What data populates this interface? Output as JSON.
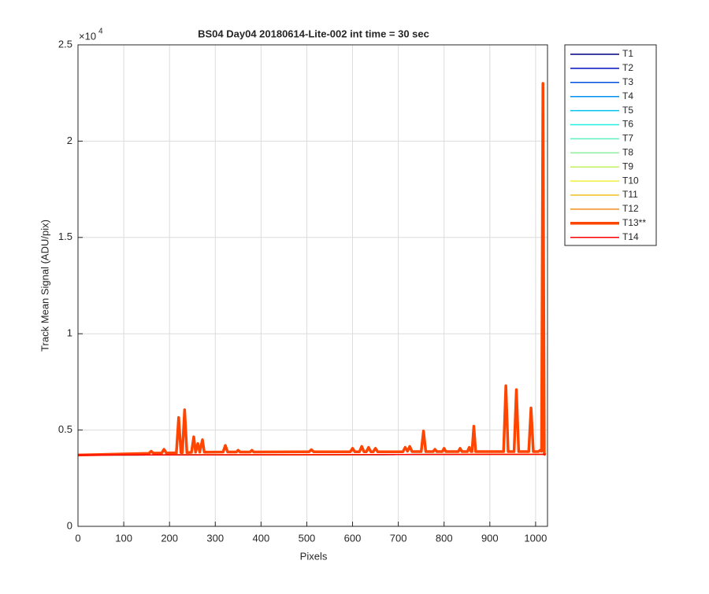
{
  "chart_data": {
    "type": "line",
    "title": "BS04 Day04 20180614-Lite-002 int time = 30 sec",
    "x_label": "Pixels",
    "y_label": "Track Mean Signal (ADU/pix)",
    "y_multiplier": {
      "base": "×10",
      "exponent": "4"
    },
    "xlim": [
      0,
      1026
    ],
    "ylim": [
      0,
      25000
    ],
    "xticks": [
      0,
      100,
      200,
      300,
      400,
      500,
      600,
      700,
      800,
      900,
      1000
    ],
    "yticks": [
      {
        "value": 0,
        "label": "0"
      },
      {
        "value": 5000,
        "label": "0.5"
      },
      {
        "value": 10000,
        "label": "1"
      },
      {
        "value": 15000,
        "label": "1.5"
      },
      {
        "value": 20000,
        "label": "2"
      },
      {
        "value": 25000,
        "label": "2.5"
      }
    ],
    "grid": true,
    "legend_position": "outside-right",
    "series": [
      {
        "name": "T1",
        "color": "#000080",
        "linewidth": 1.5,
        "x": [
          0,
          1022
        ],
        "values": [
          3700,
          3740
        ]
      },
      {
        "name": "T2",
        "color": "#0010c0",
        "linewidth": 1.5,
        "x": [
          0,
          1022
        ],
        "values": [
          3700,
          3740
        ]
      },
      {
        "name": "T3",
        "color": "#0050e0",
        "linewidth": 1.5,
        "x": [
          0,
          1022
        ],
        "values": [
          3700,
          3740
        ]
      },
      {
        "name": "T4",
        "color": "#0090f0",
        "linewidth": 1.5,
        "x": [
          0,
          1022
        ],
        "values": [
          3700,
          3740
        ]
      },
      {
        "name": "T5",
        "color": "#00c0f0",
        "linewidth": 1.5,
        "x": [
          0,
          1022
        ],
        "values": [
          3700,
          3740
        ]
      },
      {
        "name": "T6",
        "color": "#20f0e0",
        "linewidth": 1.5,
        "x": [
          0,
          1022
        ],
        "values": [
          3700,
          3740
        ]
      },
      {
        "name": "T7",
        "color": "#60f0c0",
        "linewidth": 1.5,
        "x": [
          0,
          1022
        ],
        "values": [
          3700,
          3740
        ]
      },
      {
        "name": "T8",
        "color": "#90f0a0",
        "linewidth": 1.5,
        "x": [
          0,
          1022
        ],
        "values": [
          3700,
          3740
        ]
      },
      {
        "name": "T9",
        "color": "#c0f060",
        "linewidth": 1.5,
        "x": [
          0,
          1022
        ],
        "values": [
          3700,
          3740
        ]
      },
      {
        "name": "T10",
        "color": "#f0f040",
        "linewidth": 1.5,
        "x": [
          0,
          1022
        ],
        "values": [
          3700,
          3740
        ]
      },
      {
        "name": "T11",
        "color": "#f0c020",
        "linewidth": 1.5,
        "x": [
          0,
          1022
        ],
        "values": [
          3700,
          3740
        ]
      },
      {
        "name": "T12",
        "color": "#f09020",
        "linewidth": 1.5,
        "x": [
          0,
          1022
        ],
        "values": [
          3700,
          3740
        ]
      },
      {
        "name": "T13**",
        "color": "#ff4500",
        "linewidth": 3.5,
        "x": [
          0,
          100,
          155,
          160,
          165,
          183,
          188,
          193,
          215,
          220,
          225,
          228,
          233,
          238,
          248,
          253,
          257,
          262,
          266,
          272,
          276,
          317,
          322,
          327,
          346,
          350,
          354,
          376,
          380,
          384,
          505,
          510,
          515,
          595,
          600,
          605,
          615,
          620,
          625,
          630,
          635,
          640,
          645,
          650,
          655,
          710,
          715,
          720,
          725,
          730,
          750,
          755,
          760,
          776,
          780,
          784,
          796,
          800,
          804,
          831,
          835,
          839,
          851,
          855,
          859,
          861,
          865,
          869,
          930,
          935,
          940,
          953,
          958,
          963,
          985,
          990,
          995,
          1006,
          1010,
          1013,
          1016,
          1019,
          1022
        ],
        "values": [
          3700,
          3760,
          3790,
          3900,
          3800,
          3810,
          4000,
          3810,
          3820,
          5650,
          3830,
          3830,
          6050,
          3830,
          3840,
          4650,
          3850,
          4300,
          3850,
          4500,
          3850,
          3860,
          4200,
          3860,
          3860,
          3950,
          3860,
          3860,
          3950,
          3860,
          3870,
          3980,
          3870,
          3870,
          4050,
          3870,
          3870,
          4150,
          3870,
          3870,
          4100,
          3870,
          3870,
          4050,
          3870,
          3870,
          4100,
          3900,
          4150,
          3880,
          3880,
          4950,
          3880,
          3880,
          4000,
          3880,
          3880,
          4050,
          3880,
          3880,
          4050,
          3880,
          3880,
          4100,
          3880,
          3880,
          5200,
          3880,
          3880,
          7300,
          3880,
          3880,
          7100,
          3880,
          3880,
          6150,
          3880,
          3880,
          3950,
          3900,
          23000,
          3750,
          3720
        ]
      },
      {
        "name": "T14",
        "color": "#ff0000",
        "linewidth": 1.5,
        "x": [
          0,
          1022
        ],
        "values": [
          3700,
          3740
        ]
      }
    ]
  }
}
